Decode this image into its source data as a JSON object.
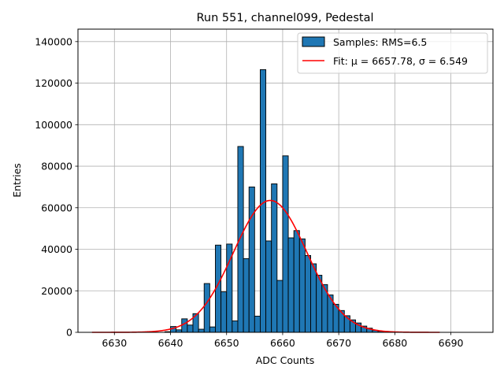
{
  "chart_data": {
    "type": "bar",
    "title": "Run 551, channel099, Pedestal",
    "xlabel": "ADC Counts",
    "ylabel": "Entries",
    "xlim": [
      6623.5,
      6697.5
    ],
    "ylim": [
      0,
      146000
    ],
    "x_ticks": [
      6630,
      6640,
      6650,
      6660,
      6670,
      6680,
      6690
    ],
    "y_ticks": [
      0,
      20000,
      40000,
      60000,
      80000,
      100000,
      120000,
      140000
    ],
    "grid": true,
    "legend_position": "top-right",
    "colors": {
      "bars": "#1f77b4",
      "bar_edge": "#000000",
      "fit": "#ff0000",
      "grid": "#b0b0b0"
    },
    "series": [
      {
        "name": "Samples: RMS=6.5",
        "kind": "histogram",
        "bin_width": 1,
        "bin_starts": [
          6639,
          6640,
          6641,
          6642,
          6643,
          6644,
          6645,
          6646,
          6647,
          6648,
          6649,
          6650,
          6651,
          6652,
          6653,
          6654,
          6655,
          6656,
          6657,
          6658,
          6659,
          6660,
          6661,
          6662,
          6663,
          6664,
          6665,
          6666,
          6667,
          6668,
          6669,
          6670,
          6671,
          6672,
          6673,
          6674,
          6675,
          6676,
          6677
        ],
        "counts": [
          300,
          2800,
          1200,
          6500,
          3500,
          9000,
          1500,
          23500,
          2600,
          42000,
          19500,
          42500,
          5500,
          89500,
          35500,
          70000,
          7800,
          126500,
          44000,
          71500,
          25000,
          85000,
          45500,
          49000,
          45000,
          37000,
          33000,
          27500,
          23000,
          18000,
          13500,
          10500,
          8000,
          6000,
          4500,
          3000,
          2000,
          1000,
          500
        ]
      },
      {
        "name": "Fit: μ = 6657.78, σ = 6.549",
        "kind": "gaussian",
        "mu": 6657.78,
        "sigma": 6.549,
        "amplitude": 63500,
        "x_range": [
          6626,
          6688
        ]
      }
    ]
  }
}
